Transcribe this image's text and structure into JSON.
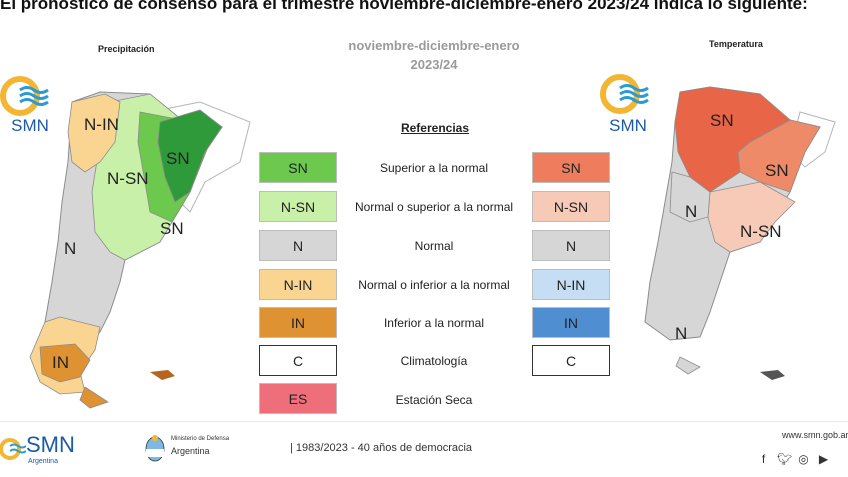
{
  "headline": "El pronóstico de consenso para el trimestre noviembre-diciembre-enero 2023/24 indica lo siguiente:",
  "period": {
    "line1": "noviembre-diciembre-enero",
    "line2": "2023/24"
  },
  "precip_panel": {
    "title": "Precipitación",
    "labels": [
      "N-IN",
      "SN",
      "N-SN",
      "N",
      "SN",
      "IN"
    ]
  },
  "temp_panel": {
    "title": "Temperatura",
    "labels": [
      "SN",
      "SN",
      "N",
      "N-SN",
      "N"
    ]
  },
  "logo": {
    "text": "SMN"
  },
  "legend": {
    "title": "Referencias",
    "rows": [
      {
        "precip": "SN",
        "desc": "Superior a la normal",
        "temp": "SN",
        "precip_color": "#6cc94e",
        "temp_color": "#ee7d5e"
      },
      {
        "precip": "N-SN",
        "desc": "Normal o superior a la normal",
        "temp": "N-SN",
        "precip_color": "#c9f0a8",
        "temp_color": "#f6cab7"
      },
      {
        "precip": "N",
        "desc": "Normal",
        "temp": "N",
        "precip_color": "#d6d6d6",
        "temp_color": "#d6d6d6"
      },
      {
        "precip": "N-IN",
        "desc": "Normal o inferior a la normal",
        "temp": "N-IN",
        "precip_color": "#f9d591",
        "temp_color": "#c6def3"
      },
      {
        "precip": "IN",
        "desc": "Inferior a la normal",
        "temp": "IN",
        "precip_color": "#df9232",
        "temp_color": "#4f8fd1"
      },
      {
        "precip": "C",
        "desc": "Climatología",
        "temp": "C",
        "precip_color": "#ffffff",
        "temp_color": "#ffffff"
      },
      {
        "precip": "ES",
        "desc": "Estación Seca",
        "precip_color": "#ee6e7a"
      }
    ]
  },
  "footer": {
    "smn": "SMN",
    "smn_sub": "Argentina",
    "ministry_small": "Ministerio de Defensa",
    "ministry_big": "Argentina",
    "democracy": "| 1983/2023 - 40 años de democracia",
    "website": "www.smn.gob.ar",
    "social_icons": [
      "facebook-icon",
      "twitter-icon",
      "instagram-icon",
      "youtube-icon"
    ]
  }
}
